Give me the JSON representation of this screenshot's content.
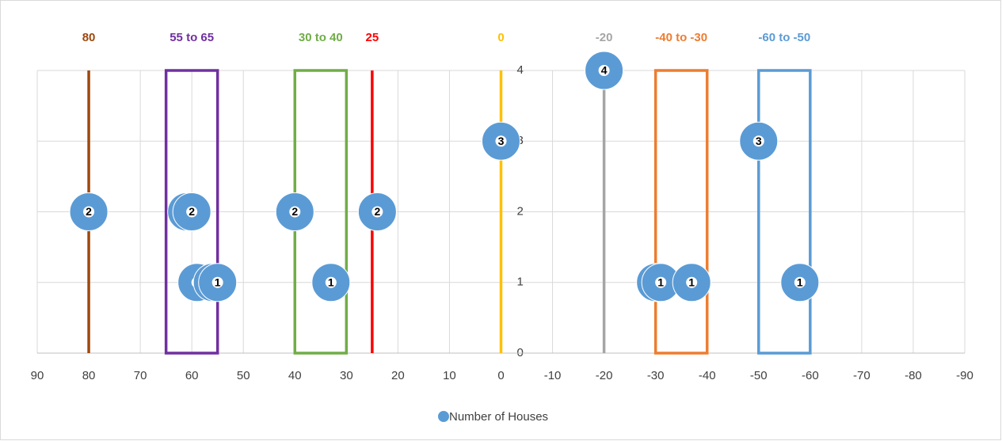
{
  "chart_data": {
    "type": "bubble",
    "xlim": [
      90,
      -90
    ],
    "ylim": [
      0,
      4
    ],
    "xticks": [
      90,
      80,
      70,
      60,
      50,
      40,
      30,
      20,
      10,
      0,
      -10,
      -20,
      -30,
      -40,
      -50,
      -60,
      -70,
      -80,
      -90
    ],
    "yticks": [
      0,
      1,
      2,
      3,
      4
    ],
    "grid": true,
    "legend": "bottom",
    "series": [
      {
        "name": "Number of Houses",
        "color": "#5b9bd5",
        "x": [
          80,
          61,
          60,
          59,
          56,
          55,
          40,
          33,
          24,
          0,
          -20,
          -30,
          -31,
          -37,
          -50,
          -58
        ],
        "values": [
          2,
          2,
          2,
          1,
          1,
          1,
          2,
          1,
          2,
          3,
          4,
          1,
          1,
          1,
          3,
          1
        ]
      }
    ],
    "line_annotations": [
      {
        "x": 80,
        "color": "#9e480e"
      },
      {
        "x": 25,
        "color": "#ff0000"
      },
      {
        "x": 0,
        "color": "#ffc000"
      },
      {
        "x": -20,
        "color": "#a5a5a5"
      }
    ],
    "range_annotations": [
      {
        "label": "55 to 65",
        "x": [
          55,
          65
        ],
        "color": "#7030a0"
      },
      {
        "label": "30 to 40",
        "x": [
          30,
          40
        ],
        "color": "#70ad47"
      },
      {
        "label": "-40 to -30",
        "x": [
          -40,
          -30
        ],
        "color": "#ed7d31"
      },
      {
        "label": "-60 to -50",
        "x": [
          -60,
          -50
        ],
        "color": "#5b9bd5"
      }
    ]
  }
}
